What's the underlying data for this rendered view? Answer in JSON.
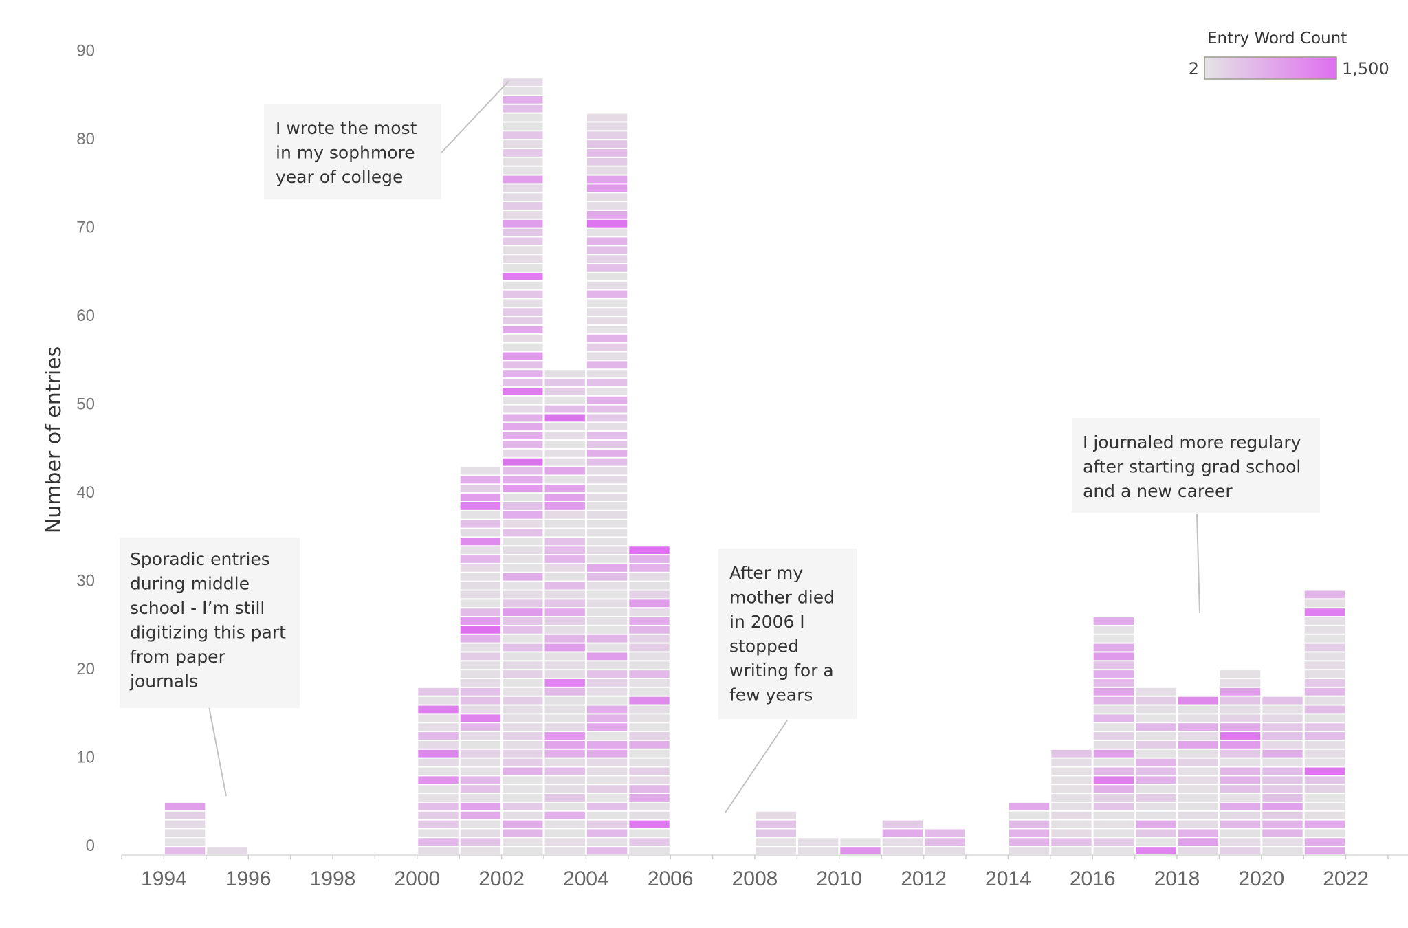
{
  "chart_data": {
    "type": "bar",
    "subtype": "stacked unit bars (one segment per entry)",
    "ylabel": "Number of entries",
    "xlabel": "",
    "x_ticks": [
      "1994",
      "1996",
      "1998",
      "2000",
      "2002",
      "2004",
      "2006",
      "2008",
      "2010",
      "2012",
      "2014",
      "2016",
      "2018",
      "2020",
      "2022"
    ],
    "y_ticks": [
      "0",
      "10",
      "20",
      "30",
      "40",
      "50",
      "60",
      "70",
      "80",
      "90"
    ],
    "ylim": [
      0,
      90
    ],
    "xlim": [
      1993,
      2023
    ],
    "grid": false,
    "categories": [
      1994,
      1995,
      2000,
      2001,
      2002,
      2003,
      2004,
      2005,
      2008,
      2009,
      2010,
      2011,
      2012,
      2014,
      2015,
      2016,
      2017,
      2018,
      2019,
      2020,
      2021
    ],
    "values": [
      6,
      1,
      19,
      44,
      88,
      55,
      84,
      35,
      5,
      2,
      2,
      4,
      3,
      6,
      12,
      27,
      19,
      18,
      21,
      18,
      30
    ],
    "color_legend": {
      "title": "Entry Word Count",
      "min_label": "2",
      "max_label": "1,500",
      "min_color": "#e4e4e4",
      "max_color": "#de6ef0"
    },
    "annotations": [
      {
        "id": "middle-school",
        "lines": [
          "Sporadic entries",
          "during middle",
          "school - I’m still",
          "digitizing this part",
          "from paper",
          "journals"
        ]
      },
      {
        "id": "sophomore",
        "lines": [
          "I wrote the most",
          "in my sophmore",
          "year of college"
        ]
      },
      {
        "id": "mother",
        "lines": [
          "After my",
          "mother died",
          "in 2006 I",
          "stopped",
          "writing for a",
          "few years"
        ]
      },
      {
        "id": "grad-school",
        "lines": [
          "I journaled more regulary",
          "after starting grad school",
          "and a new career"
        ]
      }
    ]
  }
}
